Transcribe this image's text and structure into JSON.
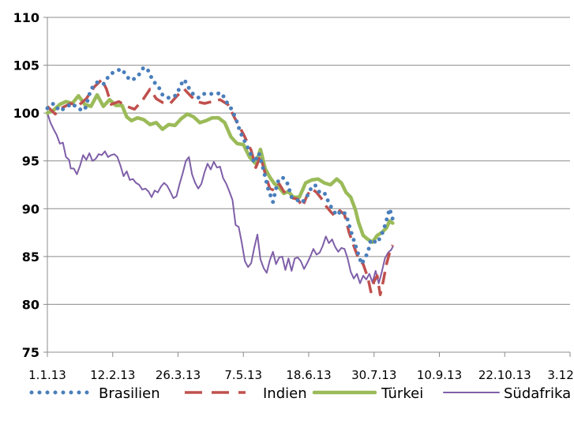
{
  "chart_data": {
    "type": "line",
    "title": "",
    "xlabel": "",
    "ylabel": "",
    "ylim": [
      75,
      110
    ],
    "yticks": [
      75,
      80,
      85,
      90,
      95,
      100,
      105,
      110
    ],
    "xticks": [
      "1.1.13",
      "12.2.13",
      "26.3.13",
      "7.5.13",
      "18.6.13",
      "30.7.13",
      "10.9.13",
      "22.10.13",
      "3.12.13"
    ],
    "grid": "horizontal",
    "legend_position": "bottom",
    "series": [
      {
        "name": "Brasilien",
        "style": "dotted",
        "color": "#4a7ebb",
        "values": [
          [
            0,
            100.5
          ],
          [
            4,
            101.0
          ],
          [
            8,
            100.2
          ],
          [
            12,
            100.6
          ],
          [
            16,
            101.0
          ],
          [
            20,
            100.4
          ],
          [
            24,
            100.3
          ],
          [
            28,
            102.5
          ],
          [
            32,
            103.2
          ],
          [
            36,
            103.0
          ],
          [
            40,
            104.0
          ],
          [
            44,
            104.4
          ],
          [
            48,
            104.6
          ],
          [
            51,
            103.8
          ],
          [
            54,
            103.4
          ],
          [
            58,
            103.8
          ],
          [
            62,
            104.8
          ],
          [
            65,
            104.4
          ],
          [
            68,
            103.3
          ],
          [
            71,
            102.9
          ],
          [
            74,
            101.9
          ],
          [
            77,
            101.6
          ],
          [
            80,
            101.6
          ],
          [
            83,
            101.9
          ],
          [
            86,
            103.0
          ],
          [
            88,
            103.5
          ],
          [
            91,
            102.6
          ],
          [
            94,
            101.9
          ],
          [
            97,
            101.6
          ],
          [
            100,
            102.0
          ],
          [
            104,
            102.0
          ],
          [
            108,
            102.0
          ],
          [
            112,
            102.1
          ],
          [
            115,
            101.2
          ],
          [
            118,
            100.5
          ],
          [
            121,
            99.5
          ],
          [
            124,
            98.0
          ],
          [
            127,
            97.0
          ],
          [
            130,
            96.0
          ],
          [
            133,
            94.8
          ],
          [
            136,
            95.8
          ],
          [
            139,
            94.0
          ],
          [
            142,
            92.0
          ],
          [
            145,
            90.7
          ],
          [
            148,
            92.8
          ],
          [
            151,
            93.3
          ],
          [
            154,
            92.8
          ],
          [
            157,
            91.2
          ],
          [
            160,
            91.0
          ],
          [
            163,
            90.6
          ],
          [
            166,
            91.0
          ],
          [
            169,
            92.0
          ],
          [
            172,
            92.5
          ],
          [
            175,
            91.7
          ],
          [
            178,
            91.7
          ],
          [
            181,
            90.6
          ],
          [
            183,
            90.0
          ],
          [
            186,
            89.3
          ],
          [
            189,
            89.8
          ],
          [
            192,
            89.4
          ],
          [
            195,
            87.7
          ],
          [
            198,
            86.2
          ],
          [
            200,
            85.2
          ],
          [
            202,
            84.2
          ],
          [
            204,
            84.8
          ],
          [
            206,
            85.4
          ],
          [
            208,
            86.8
          ],
          [
            210,
            86.6
          ],
          [
            212,
            86.4
          ],
          [
            214,
            87.0
          ],
          [
            216,
            87.7
          ],
          [
            218,
            88.8
          ],
          [
            220,
            90.0
          ],
          [
            222,
            88.9
          ]
        ]
      },
      {
        "name": "Indien",
        "style": "dashed",
        "color": "#c0504d",
        "values": [
          [
            0,
            100.7
          ],
          [
            5,
            99.9
          ],
          [
            10,
            100.6
          ],
          [
            15,
            101.0
          ],
          [
            20,
            100.8
          ],
          [
            25,
            101.5
          ],
          [
            30,
            102.7
          ],
          [
            35,
            103.5
          ],
          [
            38,
            102.5
          ],
          [
            41,
            100.9
          ],
          [
            46,
            101.2
          ],
          [
            51,
            100.7
          ],
          [
            56,
            100.4
          ],
          [
            61,
            101.3
          ],
          [
            66,
            102.5
          ],
          [
            70,
            101.5
          ],
          [
            74,
            101.1
          ],
          [
            79,
            101.0
          ],
          [
            84,
            101.9
          ],
          [
            88,
            102.5
          ],
          [
            92,
            101.8
          ],
          [
            96,
            101.2
          ],
          [
            101,
            101.0
          ],
          [
            106,
            101.2
          ],
          [
            111,
            101.4
          ],
          [
            116,
            100.9
          ],
          [
            121,
            99.3
          ],
          [
            126,
            97.8
          ],
          [
            131,
            96.1
          ],
          [
            134,
            94.3
          ],
          [
            137,
            95.5
          ],
          [
            140,
            93.7
          ],
          [
            143,
            92.1
          ],
          [
            146,
            91.9
          ],
          [
            149,
            92.6
          ],
          [
            152,
            91.8
          ],
          [
            155,
            91.3
          ],
          [
            158,
            91.1
          ],
          [
            161,
            91.0
          ],
          [
            164,
            90.2
          ],
          [
            167,
            91.4
          ],
          [
            170,
            92.1
          ],
          [
            173,
            91.7
          ],
          [
            176,
            91.1
          ],
          [
            179,
            90.3
          ],
          [
            182,
            89.7
          ],
          [
            185,
            89.2
          ],
          [
            188,
            89.8
          ],
          [
            191,
            89.4
          ],
          [
            194,
            87.5
          ],
          [
            197,
            86.1
          ],
          [
            200,
            84.8
          ],
          [
            203,
            84.2
          ],
          [
            206,
            82.8
          ],
          [
            208,
            81.3
          ],
          [
            210,
            82.4
          ],
          [
            212,
            83.0
          ],
          [
            214,
            81.0
          ],
          [
            216,
            82.5
          ],
          [
            218,
            84.2
          ],
          [
            220,
            85.4
          ],
          [
            222,
            86.2
          ]
        ]
      },
      {
        "name": "Türkei",
        "style": "solid-thick",
        "color": "#9bbb59",
        "values": [
          [
            0,
            100.0
          ],
          [
            4,
            100.3
          ],
          [
            8,
            100.9
          ],
          [
            12,
            101.2
          ],
          [
            16,
            101.0
          ],
          [
            20,
            101.8
          ],
          [
            24,
            100.9
          ],
          [
            28,
            100.7
          ],
          [
            32,
            101.9
          ],
          [
            36,
            100.7
          ],
          [
            40,
            101.4
          ],
          [
            44,
            100.8
          ],
          [
            48,
            100.8
          ],
          [
            51,
            99.6
          ],
          [
            54,
            99.2
          ],
          [
            58,
            99.5
          ],
          [
            62,
            99.3
          ],
          [
            66,
            98.8
          ],
          [
            70,
            99.0
          ],
          [
            74,
            98.3
          ],
          [
            78,
            98.8
          ],
          [
            82,
            98.7
          ],
          [
            86,
            99.4
          ],
          [
            90,
            99.9
          ],
          [
            94,
            99.6
          ],
          [
            98,
            99.0
          ],
          [
            102,
            99.2
          ],
          [
            106,
            99.5
          ],
          [
            110,
            99.5
          ],
          [
            114,
            99.0
          ],
          [
            118,
            97.5
          ],
          [
            122,
            96.8
          ],
          [
            126,
            96.7
          ],
          [
            130,
            95.4
          ],
          [
            134,
            94.7
          ],
          [
            137,
            96.2
          ],
          [
            140,
            94.2
          ],
          [
            143,
            93.3
          ],
          [
            146,
            92.6
          ],
          [
            149,
            92.2
          ],
          [
            152,
            91.6
          ],
          [
            155,
            91.8
          ],
          [
            158,
            91.2
          ],
          [
            162,
            91.2
          ],
          [
            166,
            92.7
          ],
          [
            170,
            93.0
          ],
          [
            174,
            93.1
          ],
          [
            178,
            92.7
          ],
          [
            182,
            92.5
          ],
          [
            186,
            93.1
          ],
          [
            189,
            92.7
          ],
          [
            192,
            91.7
          ],
          [
            195,
            91.2
          ],
          [
            198,
            89.9
          ],
          [
            200,
            88.6
          ],
          [
            203,
            87.2
          ],
          [
            206,
            86.8
          ],
          [
            209,
            86.5
          ],
          [
            212,
            87.2
          ],
          [
            215,
            87.5
          ],
          [
            218,
            88.0
          ],
          [
            220,
            88.7
          ],
          [
            222,
            88.5
          ]
        ]
      },
      {
        "name": "Südafrika",
        "style": "solid",
        "color": "#7f5fa8",
        "values": [
          [
            0,
            100.0
          ],
          [
            2,
            99.0
          ],
          [
            4,
            98.3
          ],
          [
            6,
            97.7
          ],
          [
            8,
            96.8
          ],
          [
            10,
            96.9
          ],
          [
            12,
            95.4
          ],
          [
            14,
            95.1
          ],
          [
            15,
            94.2
          ],
          [
            17,
            94.2
          ],
          [
            19,
            93.6
          ],
          [
            21,
            94.5
          ],
          [
            23,
            95.6
          ],
          [
            25,
            95.1
          ],
          [
            27,
            95.8
          ],
          [
            29,
            95.0
          ],
          [
            31,
            95.2
          ],
          [
            33,
            95.7
          ],
          [
            35,
            95.6
          ],
          [
            37,
            96.0
          ],
          [
            39,
            95.4
          ],
          [
            41,
            95.6
          ],
          [
            43,
            95.7
          ],
          [
            45,
            95.4
          ],
          [
            47,
            94.5
          ],
          [
            49,
            93.4
          ],
          [
            51,
            93.9
          ],
          [
            53,
            93.0
          ],
          [
            55,
            93.1
          ],
          [
            57,
            92.7
          ],
          [
            59,
            92.5
          ],
          [
            61,
            92.0
          ],
          [
            63,
            92.1
          ],
          [
            65,
            91.8
          ],
          [
            67,
            91.2
          ],
          [
            69,
            91.9
          ],
          [
            71,
            91.7
          ],
          [
            73,
            92.3
          ],
          [
            75,
            92.7
          ],
          [
            77,
            92.4
          ],
          [
            79,
            91.8
          ],
          [
            81,
            91.1
          ],
          [
            83,
            91.3
          ],
          [
            85,
            92.6
          ],
          [
            87,
            93.7
          ],
          [
            89,
            95.0
          ],
          [
            91,
            95.4
          ],
          [
            93,
            93.6
          ],
          [
            95,
            92.7
          ],
          [
            97,
            92.1
          ],
          [
            99,
            92.6
          ],
          [
            101,
            93.8
          ],
          [
            103,
            94.7
          ],
          [
            105,
            94.1
          ],
          [
            107,
            94.9
          ],
          [
            109,
            94.3
          ],
          [
            111,
            94.4
          ],
          [
            113,
            93.2
          ],
          [
            115,
            92.6
          ],
          [
            117,
            91.8
          ],
          [
            119,
            90.9
          ],
          [
            121,
            88.3
          ],
          [
            123,
            88.1
          ],
          [
            125,
            86.4
          ],
          [
            127,
            84.5
          ],
          [
            129,
            83.9
          ],
          [
            131,
            84.3
          ],
          [
            133,
            85.9
          ],
          [
            135,
            87.3
          ],
          [
            137,
            84.7
          ],
          [
            139,
            83.8
          ],
          [
            141,
            83.3
          ],
          [
            143,
            84.6
          ],
          [
            145,
            85.5
          ],
          [
            147,
            84.2
          ],
          [
            149,
            84.9
          ],
          [
            151,
            85.0
          ],
          [
            153,
            83.6
          ],
          [
            155,
            84.8
          ],
          [
            157,
            83.5
          ],
          [
            159,
            84.8
          ],
          [
            161,
            84.9
          ],
          [
            163,
            84.5
          ],
          [
            165,
            83.7
          ],
          [
            167,
            84.3
          ],
          [
            169,
            85.0
          ],
          [
            171,
            85.8
          ],
          [
            173,
            85.2
          ],
          [
            175,
            85.4
          ],
          [
            177,
            86.1
          ],
          [
            179,
            87.1
          ],
          [
            181,
            86.4
          ],
          [
            183,
            86.8
          ],
          [
            185,
            86.0
          ],
          [
            187,
            85.5
          ],
          [
            189,
            85.9
          ],
          [
            191,
            85.8
          ],
          [
            193,
            84.8
          ],
          [
            195,
            83.4
          ],
          [
            197,
            82.7
          ],
          [
            199,
            83.2
          ],
          [
            201,
            82.2
          ],
          [
            203,
            83.0
          ],
          [
            205,
            82.6
          ],
          [
            207,
            83.2
          ],
          [
            209,
            82.3
          ],
          [
            211,
            83.5
          ],
          [
            213,
            82.2
          ],
          [
            215,
            83.4
          ],
          [
            217,
            84.8
          ],
          [
            219,
            85.4
          ],
          [
            221,
            85.7
          ],
          [
            222,
            86.0
          ]
        ]
      }
    ],
    "xmax_days": 336
  }
}
